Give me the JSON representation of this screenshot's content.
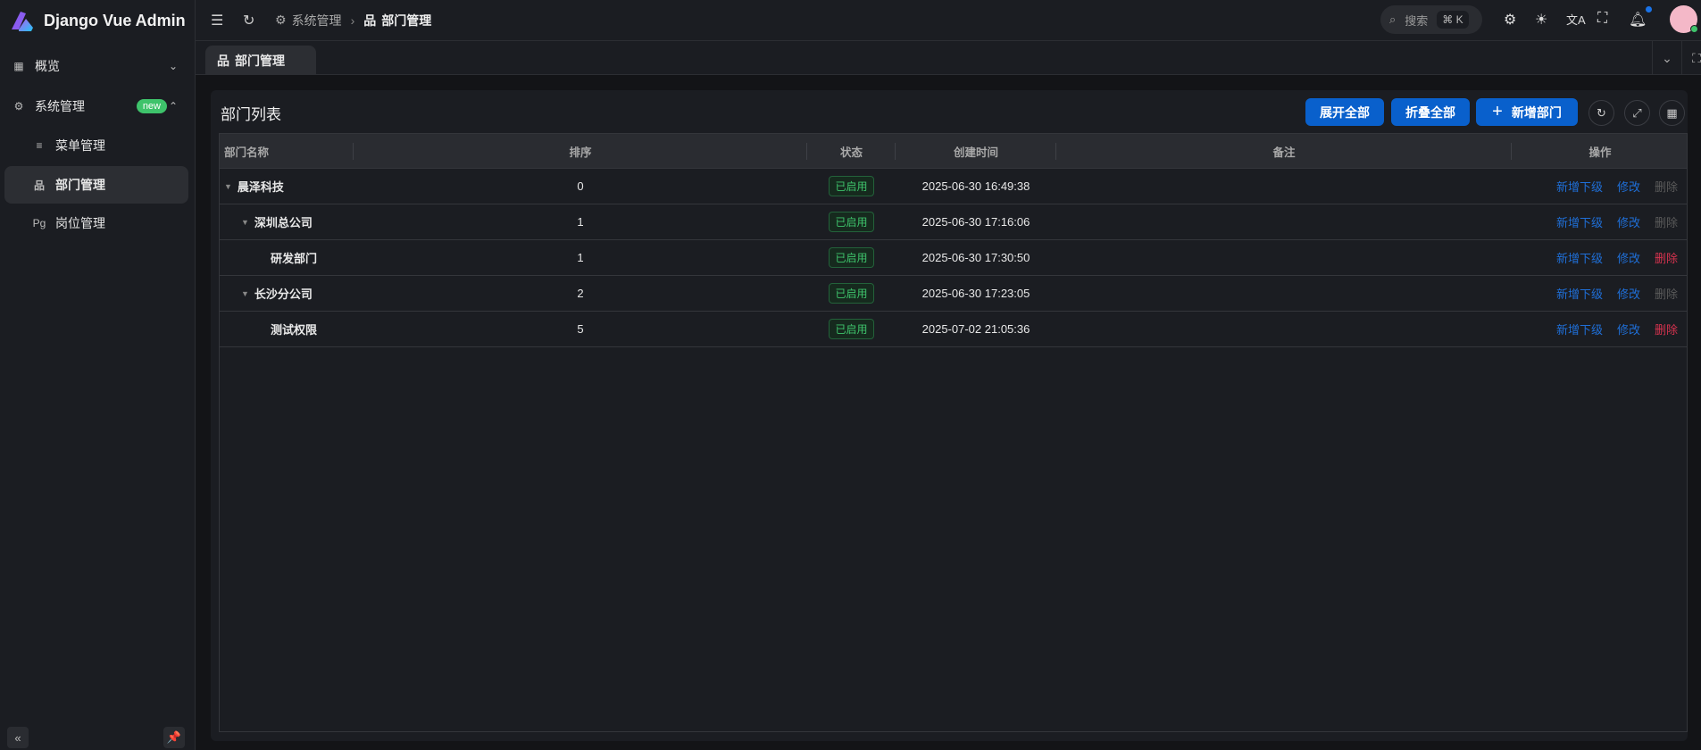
{
  "app": {
    "title": "Django Vue Admin"
  },
  "sidebar": {
    "items": [
      {
        "label": "概览",
        "icon": "dashboard-icon",
        "expanded": false
      },
      {
        "label": "系统管理",
        "icon": "gear-icon",
        "badge": "new",
        "expanded": true
      },
      {
        "label": "菜单管理",
        "icon": "list-icon"
      },
      {
        "label": "部门管理",
        "icon": "org-tree-icon",
        "active": true
      },
      {
        "label": "岗位管理",
        "icon": "pg-icon",
        "icon_text": "Pg"
      }
    ]
  },
  "header": {
    "breadcrumb": [
      "系统管理",
      "部门管理"
    ],
    "search_placeholder": "搜索",
    "search_shortcut": "⌘ K"
  },
  "tabs": [
    {
      "label": "部门管理"
    }
  ],
  "card": {
    "title": "部门列表",
    "expand_all": "展开全部",
    "collapse_all": "折叠全部",
    "add": "新增部门"
  },
  "table": {
    "columns": [
      "部门名称",
      "排序",
      "状态",
      "创建时间",
      "备注",
      "操作"
    ],
    "rows": [
      {
        "name": "晨泽科技",
        "level": 0,
        "caret": true,
        "sort": "0",
        "status": "已启用",
        "created": "2025-06-30 16:49:38",
        "remark": "",
        "delete_enabled": false
      },
      {
        "name": "深圳总公司",
        "level": 1,
        "caret": true,
        "sort": "1",
        "status": "已启用",
        "created": "2025-06-30 17:16:06",
        "remark": "",
        "delete_enabled": false
      },
      {
        "name": "研发部门",
        "level": 2,
        "caret": false,
        "sort": "1",
        "status": "已启用",
        "created": "2025-06-30 17:30:50",
        "remark": "",
        "delete_enabled": true
      },
      {
        "name": "长沙分公司",
        "level": 1,
        "caret": true,
        "sort": "2",
        "status": "已启用",
        "created": "2025-06-30 17:23:05",
        "remark": "",
        "delete_enabled": false
      },
      {
        "name": "测试权限",
        "level": 2,
        "caret": false,
        "sort": "5",
        "status": "已启用",
        "created": "2025-07-02 21:05:36",
        "remark": "",
        "delete_enabled": true
      }
    ],
    "actions": {
      "add_child": "新增下级",
      "edit": "修改",
      "delete": "删除"
    }
  },
  "colors": {
    "primary": "#0960cc",
    "success": "#3ec36b",
    "danger": "#d6334f",
    "link": "#1f6fd8"
  }
}
